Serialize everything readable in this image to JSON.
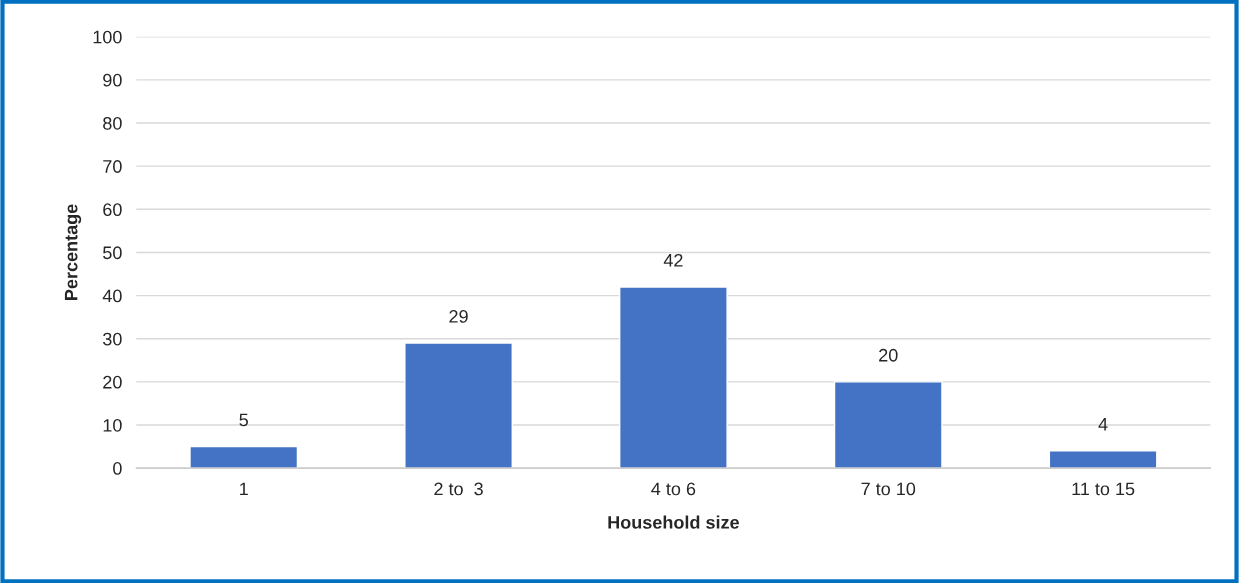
{
  "chart_data": {
    "type": "bar",
    "xlabel": "Household size",
    "ylabel": "Percentage",
    "categories": [
      "1",
      "2 to  3",
      "4 to 6",
      "7 to 10",
      "11 to 15"
    ],
    "values": [
      5,
      29,
      42,
      20,
      4
    ],
    "color": "#4472c4",
    "ylim": [
      0,
      100
    ],
    "yticks": [
      0,
      10,
      20,
      30,
      40,
      50,
      60,
      70,
      80,
      90,
      100
    ],
    "grid": "y",
    "data_labels": true
  }
}
